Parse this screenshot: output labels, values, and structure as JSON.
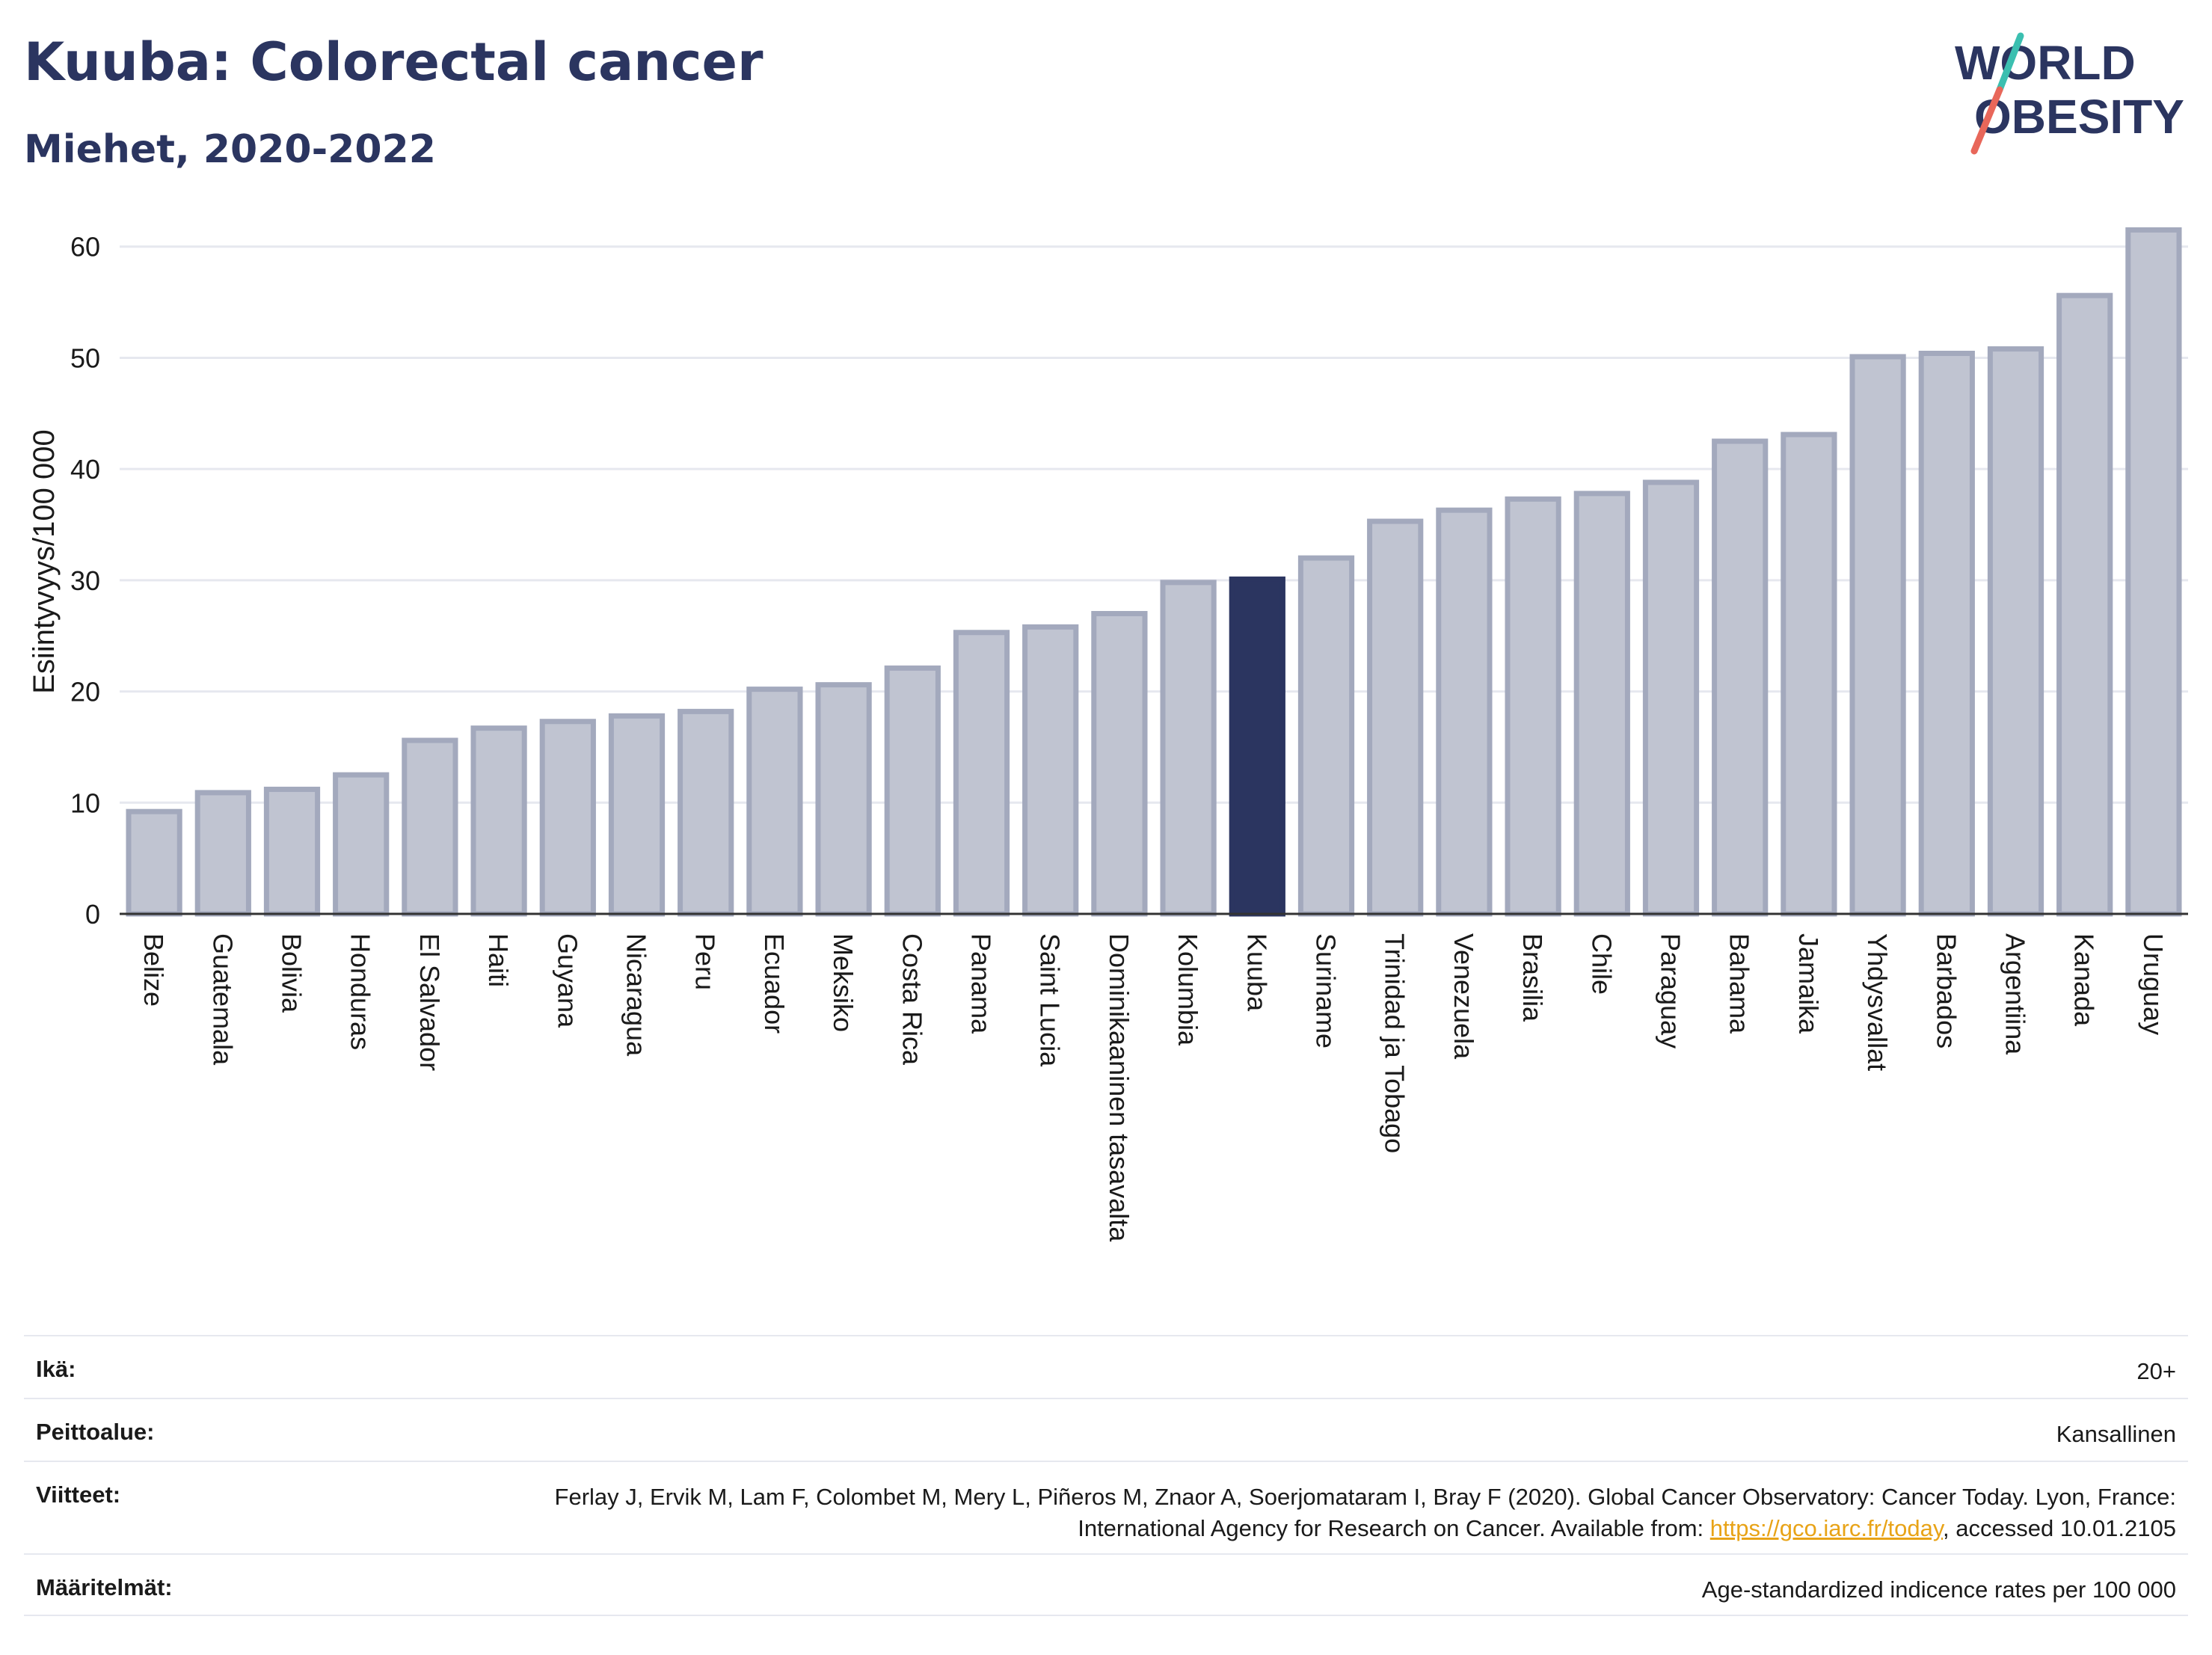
{
  "title": "Kuuba: Colorectal cancer",
  "subtitle": "Miehet, 2020-2022",
  "logo": {
    "line1": "WORLD",
    "line2": "OBESITY"
  },
  "colors": {
    "highlight": "#2b3560",
    "bar_fill": "#c0c4d1",
    "bar_stroke": "#a3a9bd",
    "grid": "#e6e8ef",
    "axis": "#333333",
    "logo_teal": "#3bbfb0",
    "logo_red": "#e8675a"
  },
  "chart_data": {
    "type": "bar",
    "title": "Kuuba: Colorectal cancer",
    "subtitle": "Miehet, 2020-2022",
    "xlabel": "",
    "ylabel": "Esiintyvyys/100 000",
    "ylim": [
      0,
      62
    ],
    "yticks": [
      0,
      10,
      20,
      30,
      40,
      50,
      60
    ],
    "highlight": "Kuuba",
    "categories": [
      "Belize",
      "Guatemala",
      "Bolivia",
      "Honduras",
      "El Salvador",
      "Haiti",
      "Guyana",
      "Nicaragua",
      "Peru",
      "Ecuador",
      "Meksiko",
      "Costa Rica",
      "Panama",
      "Saint Lucia",
      "Dominikaaninen tasavalta",
      "Kolumbia",
      "Kuuba",
      "Suriname",
      "Trinidad ja Tobago",
      "Venezuela",
      "Brasilia",
      "Chile",
      "Paraguay",
      "Bahama",
      "Jamaika",
      "Yhdysvallat",
      "Barbados",
      "Argentiina",
      "Kanada",
      "Uruguay"
    ],
    "values": [
      9.2,
      10.9,
      11.2,
      12.5,
      15.6,
      16.7,
      17.3,
      17.8,
      18.2,
      20.2,
      20.6,
      22.1,
      25.3,
      25.8,
      27.0,
      29.8,
      30.1,
      32.0,
      35.3,
      36.3,
      37.3,
      37.8,
      38.8,
      42.5,
      43.1,
      50.1,
      50.4,
      50.8,
      55.6,
      61.5
    ],
    "grid": true,
    "legend": "none"
  },
  "meta": [
    {
      "label": "Ikä:",
      "value": "20+"
    },
    {
      "label": "Peittoalue:",
      "value": "Kansallinen"
    },
    {
      "label": "Viitteet:",
      "value_before": "Ferlay J, Ervik M, Lam F, Colombet M, Mery L, Piñeros M, Znaor A, Soerjomataram I, Bray F (2020). Global Cancer Observatory: Cancer Today. Lyon, France: International Agency for Research on Cancer. Available from: ",
      "link": "https://gco.iarc.fr/today",
      "value_after": ", accessed 10.01.2105"
    },
    {
      "label": "Määritelmät:",
      "value": "Age-standardized indicence rates per 100 000"
    }
  ]
}
